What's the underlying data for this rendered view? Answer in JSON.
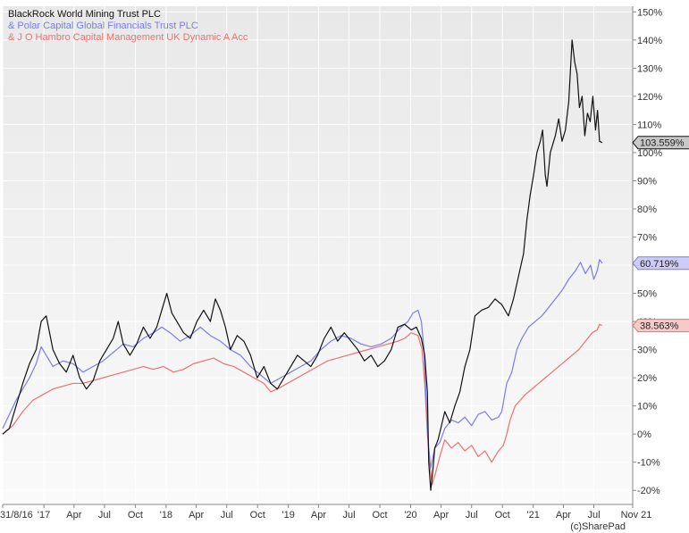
{
  "chart_data": {
    "type": "line",
    "y_unit": "%",
    "ylim": [
      -25,
      152
    ],
    "xlim": [
      0,
      1881
    ],
    "grid": true,
    "legend_placement": "top-left",
    "y_ticks": [
      150,
      140,
      130,
      120,
      110,
      100,
      90,
      80,
      70,
      60,
      50,
      40,
      30,
      20,
      10,
      0,
      -10,
      -20
    ],
    "y_tick_labels": [
      "150%",
      "140%",
      "130%",
      "120%",
      "110%",
      "100%",
      "90%",
      "80%",
      "70%",
      "60%",
      "50%",
      "40%",
      "30%",
      "20%",
      "10%",
      "0%",
      "-10%",
      "-20%"
    ],
    "x_ticks": [
      {
        "label": "31/8/16",
        "day": 0
      },
      {
        "label": "'17",
        "day": 123
      },
      {
        "label": "Apr",
        "day": 213
      },
      {
        "label": "Jul",
        "day": 304
      },
      {
        "label": "Oct",
        "day": 396
      },
      {
        "label": "'18",
        "day": 488
      },
      {
        "label": "Apr",
        "day": 578
      },
      {
        "label": "Jul",
        "day": 669
      },
      {
        "label": "Oct",
        "day": 761
      },
      {
        "label": "'19",
        "day": 853
      },
      {
        "label": "Apr",
        "day": 943
      },
      {
        "label": "Jul",
        "day": 1034
      },
      {
        "label": "Oct",
        "day": 1126
      },
      {
        "label": "'20",
        "day": 1218
      },
      {
        "label": "Apr",
        "day": 1309
      },
      {
        "label": "Jul",
        "day": 1400
      },
      {
        "label": "Oct",
        "day": 1492
      },
      {
        "label": "'21",
        "day": 1584
      },
      {
        "label": "Apr",
        "day": 1674
      },
      {
        "label": "Jul",
        "day": 1765
      },
      {
        "label": "Nov 21",
        "day": 1888
      }
    ],
    "series": [
      {
        "name": "BlackRock World Mining Trust PLC",
        "legend_text": "BlackRock World Mining Trust PLC",
        "color": "#111111",
        "end_label": "103.559%",
        "tag_fill": "#c8c8c8",
        "points": [
          [
            0,
            0
          ],
          [
            20,
            2
          ],
          [
            40,
            10
          ],
          [
            60,
            18
          ],
          [
            80,
            25
          ],
          [
            100,
            30
          ],
          [
            115,
            40
          ],
          [
            130,
            42
          ],
          [
            150,
            30
          ],
          [
            170,
            25
          ],
          [
            190,
            22
          ],
          [
            210,
            28
          ],
          [
            230,
            20
          ],
          [
            250,
            16
          ],
          [
            270,
            19
          ],
          [
            290,
            26
          ],
          [
            310,
            30
          ],
          [
            330,
            34
          ],
          [
            345,
            40
          ],
          [
            360,
            32
          ],
          [
            380,
            28
          ],
          [
            400,
            32
          ],
          [
            420,
            38
          ],
          [
            440,
            34
          ],
          [
            460,
            38
          ],
          [
            475,
            44
          ],
          [
            490,
            50
          ],
          [
            505,
            43
          ],
          [
            520,
            40
          ],
          [
            540,
            36
          ],
          [
            560,
            34
          ],
          [
            580,
            40
          ],
          [
            600,
            44
          ],
          [
            620,
            40
          ],
          [
            635,
            48
          ],
          [
            650,
            44
          ],
          [
            665,
            38
          ],
          [
            680,
            30
          ],
          [
            700,
            35
          ],
          [
            720,
            33
          ],
          [
            740,
            28
          ],
          [
            760,
            20
          ],
          [
            780,
            24
          ],
          [
            800,
            18
          ],
          [
            820,
            16
          ],
          [
            840,
            20
          ],
          [
            860,
            24
          ],
          [
            880,
            28
          ],
          [
            900,
            26
          ],
          [
            920,
            24
          ],
          [
            940,
            28
          ],
          [
            960,
            34
          ],
          [
            980,
            38
          ],
          [
            1000,
            33
          ],
          [
            1020,
            36
          ],
          [
            1040,
            33
          ],
          [
            1060,
            30
          ],
          [
            1080,
            26
          ],
          [
            1100,
            28
          ],
          [
            1120,
            24
          ],
          [
            1140,
            26
          ],
          [
            1160,
            30
          ],
          [
            1180,
            38
          ],
          [
            1200,
            39
          ],
          [
            1220,
            37
          ],
          [
            1235,
            38
          ],
          [
            1250,
            34
          ],
          [
            1260,
            28
          ],
          [
            1268,
            15
          ],
          [
            1272,
            -10
          ],
          [
            1278,
            -20
          ],
          [
            1285,
            -12
          ],
          [
            1290,
            -5
          ],
          [
            1300,
            -2
          ],
          [
            1310,
            3
          ],
          [
            1320,
            8
          ],
          [
            1335,
            4
          ],
          [
            1350,
            10
          ],
          [
            1365,
            15
          ],
          [
            1380,
            24
          ],
          [
            1395,
            30
          ],
          [
            1410,
            42
          ],
          [
            1430,
            44
          ],
          [
            1450,
            45
          ],
          [
            1470,
            48
          ],
          [
            1490,
            46
          ],
          [
            1510,
            42
          ],
          [
            1525,
            48
          ],
          [
            1540,
            56
          ],
          [
            1555,
            64
          ],
          [
            1565,
            76
          ],
          [
            1575,
            85
          ],
          [
            1585,
            92
          ],
          [
            1595,
            100
          ],
          [
            1605,
            104
          ],
          [
            1612,
            108
          ],
          [
            1620,
            92
          ],
          [
            1625,
            88
          ],
          [
            1635,
            100
          ],
          [
            1650,
            106
          ],
          [
            1660,
            112
          ],
          [
            1670,
            104
          ],
          [
            1680,
            108
          ],
          [
            1690,
            118
          ],
          [
            1700,
            140
          ],
          [
            1708,
            132
          ],
          [
            1715,
            128
          ],
          [
            1722,
            116
          ],
          [
            1730,
            120
          ],
          [
            1738,
            106
          ],
          [
            1746,
            114
          ],
          [
            1754,
            111
          ],
          [
            1762,
            120
          ],
          [
            1770,
            108
          ],
          [
            1776,
            115
          ],
          [
            1782,
            104
          ],
          [
            1790,
            103.559
          ]
        ]
      },
      {
        "name": "& Polar Capital Global Financials Trust PLC",
        "legend_text": "& Polar Capital Global Financials Trust PLC",
        "color": "#7b7bf0",
        "end_label": "60.719%",
        "tag_fill": "#ccccf7",
        "points": [
          [
            0,
            2
          ],
          [
            40,
            12
          ],
          [
            80,
            20
          ],
          [
            100,
            25
          ],
          [
            115,
            31
          ],
          [
            130,
            28
          ],
          [
            150,
            24
          ],
          [
            180,
            26
          ],
          [
            210,
            25
          ],
          [
            240,
            22
          ],
          [
            270,
            24
          ],
          [
            300,
            26
          ],
          [
            330,
            29
          ],
          [
            360,
            32
          ],
          [
            390,
            31
          ],
          [
            420,
            34
          ],
          [
            450,
            36
          ],
          [
            475,
            38
          ],
          [
            500,
            36
          ],
          [
            530,
            33
          ],
          [
            560,
            35
          ],
          [
            590,
            38
          ],
          [
            620,
            35
          ],
          [
            650,
            33
          ],
          [
            680,
            30
          ],
          [
            710,
            28
          ],
          [
            740,
            24
          ],
          [
            770,
            21
          ],
          [
            800,
            18
          ],
          [
            830,
            20
          ],
          [
            860,
            22
          ],
          [
            890,
            24
          ],
          [
            920,
            26
          ],
          [
            950,
            30
          ],
          [
            980,
            33
          ],
          [
            1010,
            35
          ],
          [
            1040,
            34
          ],
          [
            1070,
            32
          ],
          [
            1100,
            31
          ],
          [
            1130,
            32
          ],
          [
            1160,
            34
          ],
          [
            1190,
            38
          ],
          [
            1210,
            40
          ],
          [
            1225,
            43
          ],
          [
            1240,
            44
          ],
          [
            1250,
            40
          ],
          [
            1258,
            30
          ],
          [
            1265,
            10
          ],
          [
            1272,
            -5
          ],
          [
            1278,
            -12
          ],
          [
            1290,
            -5
          ],
          [
            1305,
            -3
          ],
          [
            1320,
            2
          ],
          [
            1340,
            5
          ],
          [
            1360,
            4
          ],
          [
            1380,
            6
          ],
          [
            1400,
            3
          ],
          [
            1420,
            7
          ],
          [
            1440,
            8
          ],
          [
            1460,
            5
          ],
          [
            1480,
            6
          ],
          [
            1490,
            8
          ],
          [
            1505,
            18
          ],
          [
            1520,
            22
          ],
          [
            1535,
            30
          ],
          [
            1550,
            34
          ],
          [
            1570,
            38
          ],
          [
            1590,
            40
          ],
          [
            1610,
            42
          ],
          [
            1630,
            45
          ],
          [
            1650,
            48
          ],
          [
            1670,
            51
          ],
          [
            1690,
            55
          ],
          [
            1710,
            58
          ],
          [
            1725,
            61
          ],
          [
            1740,
            57
          ],
          [
            1755,
            60
          ],
          [
            1765,
            55
          ],
          [
            1775,
            58
          ],
          [
            1782,
            62
          ],
          [
            1790,
            60.719
          ]
        ]
      },
      {
        "name": "& J O Hambro Capital Management UK Dynamic A Acc",
        "legend_text": "& J O Hambro Capital Management UK Dynamic A Acc",
        "color": "#f07070",
        "end_label": "38.563%",
        "tag_fill": "#f7caca",
        "points": [
          [
            0,
            0
          ],
          [
            30,
            3
          ],
          [
            60,
            8
          ],
          [
            90,
            12
          ],
          [
            120,
            14
          ],
          [
            150,
            16
          ],
          [
            180,
            17
          ],
          [
            210,
            18
          ],
          [
            240,
            18
          ],
          [
            270,
            19
          ],
          [
            300,
            20
          ],
          [
            330,
            21
          ],
          [
            360,
            22
          ],
          [
            390,
            23
          ],
          [
            420,
            24
          ],
          [
            450,
            23
          ],
          [
            480,
            24
          ],
          [
            510,
            22
          ],
          [
            540,
            23
          ],
          [
            570,
            25
          ],
          [
            600,
            26
          ],
          [
            630,
            27
          ],
          [
            660,
            25
          ],
          [
            690,
            24
          ],
          [
            720,
            22
          ],
          [
            750,
            20
          ],
          [
            780,
            18
          ],
          [
            800,
            15
          ],
          [
            820,
            16
          ],
          [
            850,
            18
          ],
          [
            880,
            20
          ],
          [
            910,
            22
          ],
          [
            940,
            24
          ],
          [
            970,
            26
          ],
          [
            1000,
            27
          ],
          [
            1030,
            28
          ],
          [
            1060,
            29
          ],
          [
            1090,
            30
          ],
          [
            1120,
            31
          ],
          [
            1150,
            32
          ],
          [
            1180,
            33
          ],
          [
            1200,
            34
          ],
          [
            1220,
            36
          ],
          [
            1240,
            35
          ],
          [
            1252,
            30
          ],
          [
            1260,
            18
          ],
          [
            1268,
            0
          ],
          [
            1275,
            -10
          ],
          [
            1282,
            -18
          ],
          [
            1292,
            -14
          ],
          [
            1305,
            -8
          ],
          [
            1320,
            -2
          ],
          [
            1340,
            -5
          ],
          [
            1360,
            -3
          ],
          [
            1380,
            -6
          ],
          [
            1400,
            -4
          ],
          [
            1420,
            -8
          ],
          [
            1440,
            -6
          ],
          [
            1460,
            -10
          ],
          [
            1480,
            -6
          ],
          [
            1495,
            -4
          ],
          [
            1505,
            0
          ],
          [
            1515,
            5
          ],
          [
            1530,
            10
          ],
          [
            1545,
            12
          ],
          [
            1560,
            14
          ],
          [
            1580,
            16
          ],
          [
            1600,
            18
          ],
          [
            1620,
            20
          ],
          [
            1640,
            22
          ],
          [
            1660,
            24
          ],
          [
            1680,
            26
          ],
          [
            1700,
            28
          ],
          [
            1720,
            30
          ],
          [
            1740,
            33
          ],
          [
            1760,
            36
          ],
          [
            1775,
            37
          ],
          [
            1782,
            39
          ],
          [
            1790,
            38.563
          ]
        ]
      }
    ],
    "credit": "(c)SharePad"
  }
}
